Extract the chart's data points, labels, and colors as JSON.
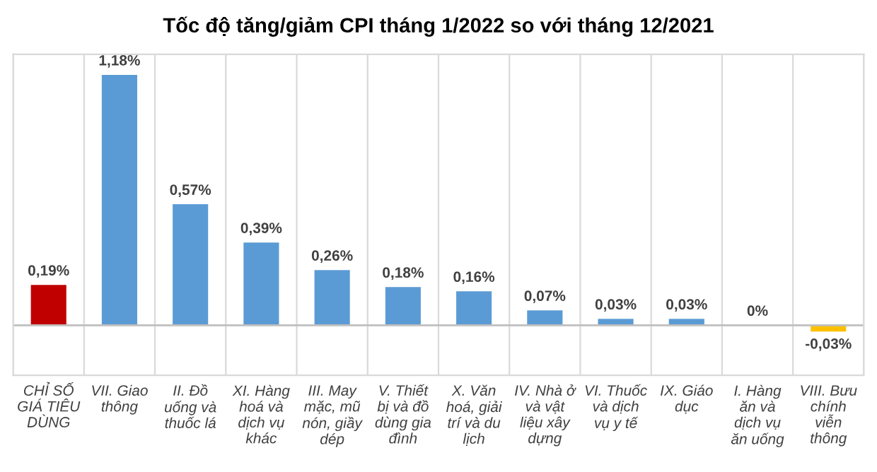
{
  "chart_data": {
    "type": "bar",
    "title": "Tốc độ tăng/giảm CPI tháng 1/2022 so với tháng 12/2021",
    "categories": [
      "CHỈ SỐ\nGIÁ TIÊU\nDÙNG",
      "VII. Giao\nthông",
      "II. Đồ\nuống và\nthuốc lá",
      "XI. Hàng\nhoá và\ndịch vụ\nkhác",
      "III. May\nmặc, mũ\nnón, giầy\ndép",
      "V. Thiết\nbị và đồ\ndùng gia\nđình",
      "X. Văn\nhoá, giải\ntrí và du\nlịch",
      "IV. Nhà ở\nvà vật\nliệu xây\ndựng",
      "VI. Thuốc\nvà dịch\nvụ y tế",
      "IX. Giáo\ndục",
      "I. Hàng\năn và\ndịch vụ\năn uống",
      "VIII. Bưu\nchính\nviễn\nthông"
    ],
    "values": [
      0.19,
      1.18,
      0.57,
      0.39,
      0.26,
      0.18,
      0.16,
      0.07,
      0.03,
      0.03,
      0,
      -0.03
    ],
    "colors": [
      "#c00000",
      "#5b9bd5",
      "#5b9bd5",
      "#5b9bd5",
      "#5b9bd5",
      "#5b9bd5",
      "#5b9bd5",
      "#5b9bd5",
      "#5b9bd5",
      "#5b9bd5",
      "#5b9bd5",
      "#ffc000"
    ],
    "value_labels": [
      "0,19%",
      "1,18%",
      "0,57%",
      "0,39%",
      "0,26%",
      "0,18%",
      "0,16%",
      "0,07%",
      "0,03%",
      "0,03%",
      "0%",
      "-0,03%"
    ],
    "grid": "x"
  }
}
